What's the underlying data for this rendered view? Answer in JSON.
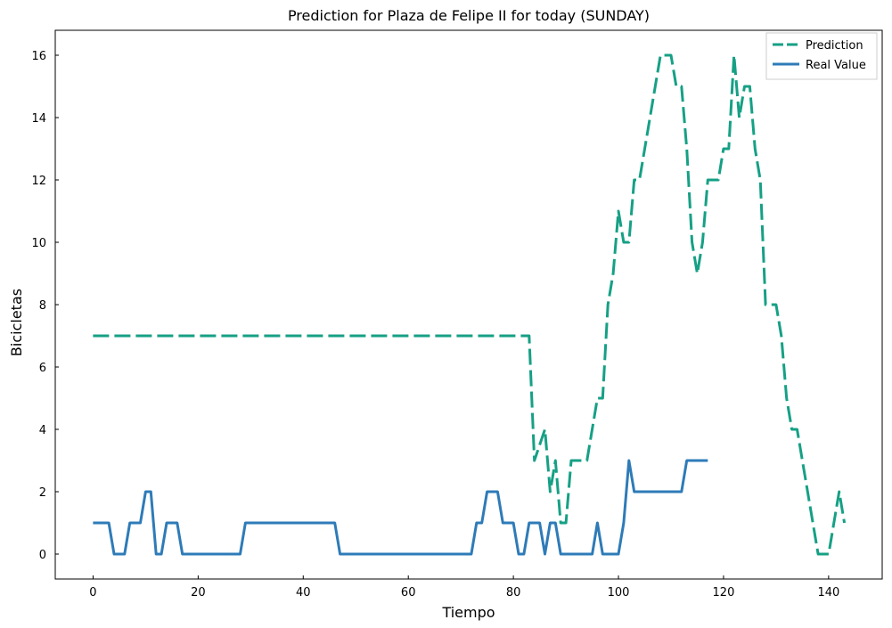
{
  "chart_data": {
    "type": "line",
    "title": "Prediction for Plaza de Felipe II for today (SUNDAY)",
    "xlabel": "Tiempo",
    "ylabel": "Bicicletas",
    "xlim": [
      -7.2,
      150.2
    ],
    "ylim": [
      -0.8,
      16.8
    ],
    "xticks": [
      0,
      20,
      40,
      60,
      80,
      100,
      120,
      140
    ],
    "yticks": [
      0,
      2,
      4,
      6,
      8,
      10,
      12,
      14,
      16
    ],
    "grid": false,
    "legend": "top-right",
    "series": [
      {
        "name": "Prediction",
        "color": "#16a085",
        "style": "dashed",
        "points": [
          [
            0,
            7
          ],
          [
            83,
            7
          ],
          [
            84,
            3
          ],
          [
            86,
            4
          ],
          [
            87,
            2
          ],
          [
            88,
            3
          ],
          [
            89,
            1
          ],
          [
            90,
            1
          ],
          [
            91,
            3
          ],
          [
            93,
            3
          ],
          [
            94,
            3
          ],
          [
            96,
            5
          ],
          [
            97,
            5
          ],
          [
            98,
            8
          ],
          [
            99,
            9
          ],
          [
            100,
            11
          ],
          [
            101,
            10
          ],
          [
            102,
            10
          ],
          [
            103,
            12
          ],
          [
            104,
            12
          ],
          [
            106,
            14
          ],
          [
            107,
            15
          ],
          [
            108,
            16
          ],
          [
            110,
            16
          ],
          [
            111,
            15
          ],
          [
            112,
            15
          ],
          [
            113,
            13
          ],
          [
            114,
            10
          ],
          [
            115,
            9
          ],
          [
            116,
            10
          ],
          [
            117,
            12
          ],
          [
            118,
            12
          ],
          [
            119,
            12
          ],
          [
            120,
            13
          ],
          [
            121,
            13
          ],
          [
            122,
            16
          ],
          [
            123,
            14
          ],
          [
            124,
            15
          ],
          [
            125,
            15
          ],
          [
            126,
            13
          ],
          [
            127,
            12
          ],
          [
            128,
            8
          ],
          [
            129,
            8
          ],
          [
            130,
            8
          ],
          [
            131,
            7
          ],
          [
            132,
            5
          ],
          [
            133,
            4
          ],
          [
            134,
            4
          ],
          [
            136,
            2
          ],
          [
            137,
            1
          ],
          [
            138,
            0
          ],
          [
            140,
            0
          ],
          [
            142,
            2
          ],
          [
            143,
            1
          ]
        ]
      },
      {
        "name": "Real Value",
        "color": "#2e7bb8",
        "style": "solid",
        "points": [
          [
            0,
            1
          ],
          [
            3,
            1
          ],
          [
            4,
            0
          ],
          [
            6,
            0
          ],
          [
            7,
            1
          ],
          [
            9,
            1
          ],
          [
            10,
            2
          ],
          [
            11,
            2
          ],
          [
            12,
            0
          ],
          [
            13,
            0
          ],
          [
            14,
            1
          ],
          [
            16,
            1
          ],
          [
            17,
            0
          ],
          [
            28,
            0
          ],
          [
            29,
            1
          ],
          [
            46,
            1
          ],
          [
            47,
            0
          ],
          [
            72,
            0
          ],
          [
            73,
            1
          ],
          [
            74,
            1
          ],
          [
            75,
            2
          ],
          [
            77,
            2
          ],
          [
            78,
            1
          ],
          [
            80,
            1
          ],
          [
            81,
            0
          ],
          [
            82,
            0
          ],
          [
            83,
            1
          ],
          [
            85,
            1
          ],
          [
            86,
            0
          ],
          [
            87,
            1
          ],
          [
            88,
            1
          ],
          [
            89,
            0
          ],
          [
            95,
            0
          ],
          [
            96,
            1
          ],
          [
            97,
            0
          ],
          [
            100,
            0
          ],
          [
            101,
            1
          ],
          [
            102,
            3
          ],
          [
            103,
            2
          ],
          [
            112,
            2
          ],
          [
            113,
            3
          ],
          [
            117,
            3
          ]
        ]
      }
    ]
  }
}
